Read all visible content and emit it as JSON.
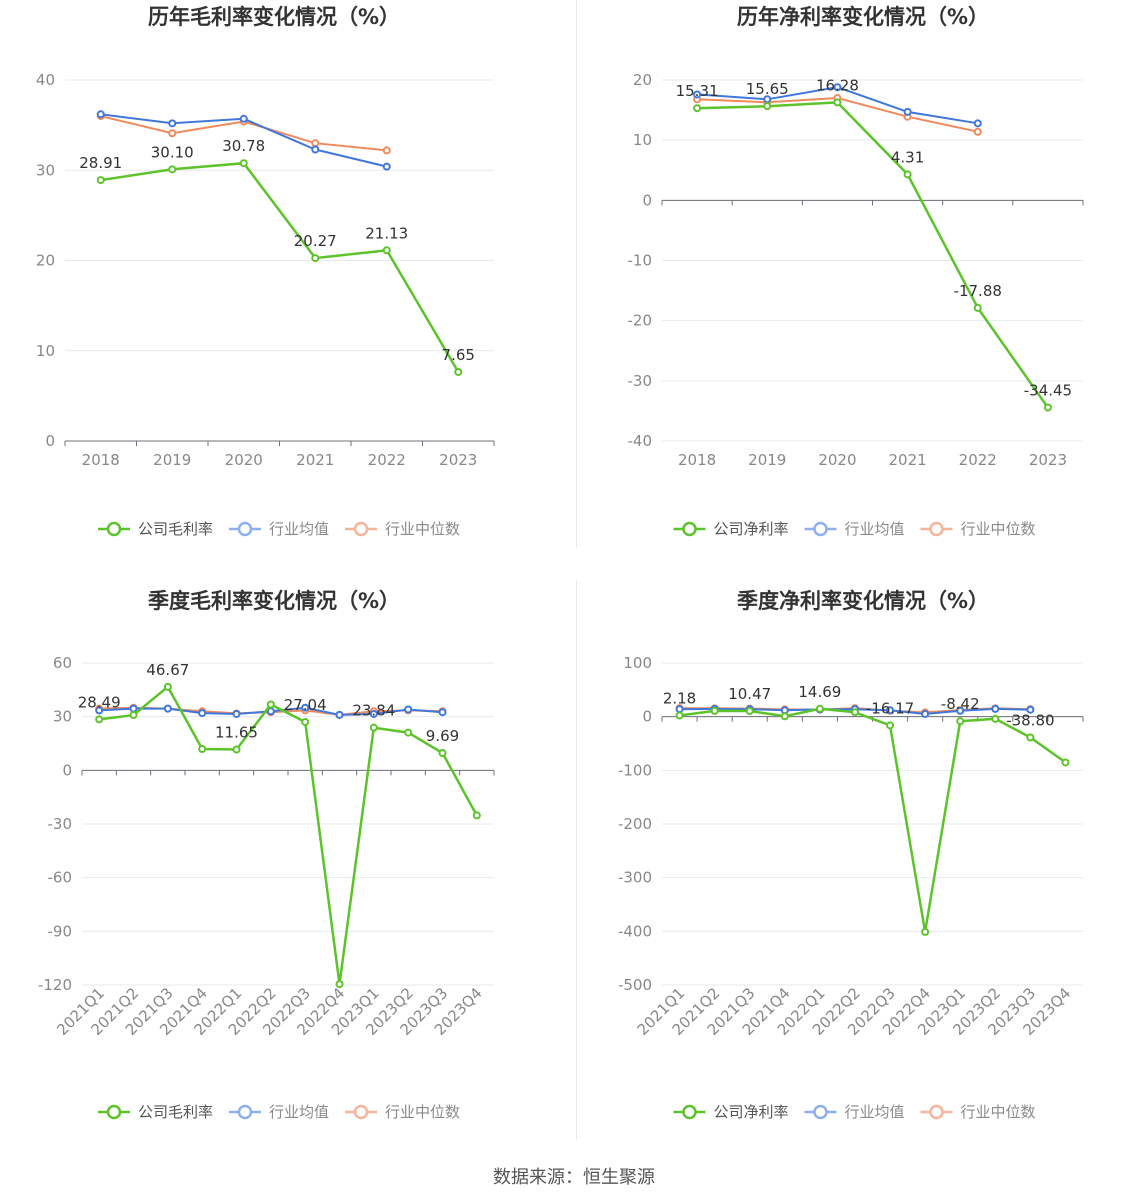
{
  "source": "数据来源：恒生聚源",
  "colors": {
    "company": "#5cc42a",
    "average": "#3f77dd",
    "median": "#f08a5d",
    "average_legend": "#8fb0ee",
    "median_legend": "#f5b59a",
    "grid": "#e6e9f0",
    "axis": "#6e7079"
  },
  "chart_data": [
    {
      "type": "line",
      "title": "历年毛利率变化情况（%）",
      "categories": [
        "2018",
        "2019",
        "2020",
        "2021",
        "2022",
        "2023"
      ],
      "ylim": [
        0,
        40
      ],
      "yticks": [
        0,
        10,
        20,
        30,
        40
      ],
      "grid": true,
      "legend": "bottom",
      "series": [
        {
          "name": "公司毛利率",
          "key": "company",
          "values": [
            28.91,
            30.1,
            30.78,
            20.27,
            21.13,
            7.65
          ],
          "labels": [
            "28.91",
            "30.10",
            "30.78",
            "20.27",
            "21.13",
            "7.65"
          ]
        },
        {
          "name": "行业均值",
          "key": "average",
          "values": [
            36.2,
            35.2,
            35.7,
            32.3,
            30.4,
            null
          ]
        },
        {
          "name": "行业中位数",
          "key": "median",
          "values": [
            36.0,
            34.1,
            35.4,
            33.0,
            32.2,
            null
          ]
        }
      ]
    },
    {
      "type": "line",
      "title": "历年净利率变化情况（%）",
      "categories": [
        "2018",
        "2019",
        "2020",
        "2021",
        "2022",
        "2023"
      ],
      "ylim": [
        -40,
        20
      ],
      "yticks": [
        -40,
        -30,
        -20,
        -10,
        0,
        10,
        20
      ],
      "grid": true,
      "legend": "bottom",
      "series": [
        {
          "name": "公司净利率",
          "key": "company",
          "values": [
            15.31,
            15.65,
            16.28,
            4.31,
            -17.88,
            -34.45
          ],
          "labels": [
            "15.31",
            "15.65",
            "16.28",
            "4.31",
            "-17.88",
            "-34.45"
          ]
        },
        {
          "name": "行业均值",
          "key": "average",
          "values": [
            17.6,
            16.8,
            18.8,
            14.7,
            12.8,
            null
          ]
        },
        {
          "name": "行业中位数",
          "key": "median",
          "values": [
            16.8,
            16.3,
            17.0,
            13.9,
            11.4,
            null
          ]
        }
      ]
    },
    {
      "type": "line",
      "title": "季度毛利率变化情况（%）",
      "categories": [
        "2021Q1",
        "2021Q2",
        "2021Q3",
        "2021Q4",
        "2022Q1",
        "2022Q2",
        "2022Q3",
        "2022Q4",
        "2023Q1",
        "2023Q2",
        "2023Q3",
        "2023Q4"
      ],
      "ylim": [
        -120,
        60
      ],
      "yticks": [
        -120,
        -90,
        -60,
        -30,
        0,
        30,
        60
      ],
      "grid": true,
      "legend": "bottom",
      "series": [
        {
          "name": "公司毛利率",
          "key": "company",
          "values": [
            28.49,
            30.9,
            46.67,
            11.9,
            11.65,
            36.8,
            27.04,
            -119.5,
            23.84,
            21.1,
            9.69,
            -25.2
          ],
          "labels": [
            "28.49",
            "",
            "46.67",
            "",
            "11.65",
            "",
            "27.04",
            "",
            "23.84",
            "",
            "9.69",
            ""
          ]
        },
        {
          "name": "行业均值",
          "key": "average",
          "values": [
            33.5,
            34.5,
            34.5,
            32.0,
            31.5,
            33.0,
            35.0,
            31.0,
            31.5,
            34.0,
            32.5,
            null
          ]
        },
        {
          "name": "行业中位数",
          "key": "median",
          "values": [
            34.5,
            35.0,
            34.5,
            33.0,
            31.8,
            32.5,
            33.5,
            31.0,
            33.0,
            33.5,
            33.0,
            null
          ]
        }
      ]
    },
    {
      "type": "line",
      "title": "季度净利率变化情况（%）",
      "categories": [
        "2021Q1",
        "2021Q2",
        "2021Q3",
        "2021Q4",
        "2022Q1",
        "2022Q2",
        "2022Q3",
        "2022Q4",
        "2023Q1",
        "2023Q2",
        "2023Q3",
        "2023Q4"
      ],
      "ylim": [
        -500,
        100
      ],
      "yticks": [
        -500,
        -400,
        -300,
        -200,
        -100,
        0,
        100
      ],
      "grid": true,
      "legend": "bottom",
      "series": [
        {
          "name": "公司净利率",
          "key": "company",
          "values": [
            2.18,
            10.8,
            10.47,
            0.8,
            14.69,
            8.2,
            -16.17,
            -401.0,
            -8.42,
            -4.0,
            -38.8,
            -85.3
          ],
          "labels": [
            "2.18",
            "",
            "10.47",
            "",
            "14.69",
            "",
            "-16.17",
            "",
            "-8.42",
            "",
            "-38.80",
            ""
          ]
        },
        {
          "name": "行业均值",
          "key": "average",
          "values": [
            14.0,
            14.5,
            14.0,
            12.0,
            13.5,
            14.0,
            12.0,
            5.0,
            11.0,
            14.5,
            13.0,
            null
          ]
        },
        {
          "name": "行业中位数",
          "key": "median",
          "values": [
            16.0,
            15.5,
            15.0,
            13.5,
            13.0,
            16.0,
            11.0,
            8.0,
            12.5,
            15.5,
            14.0,
            null
          ]
        }
      ]
    }
  ]
}
